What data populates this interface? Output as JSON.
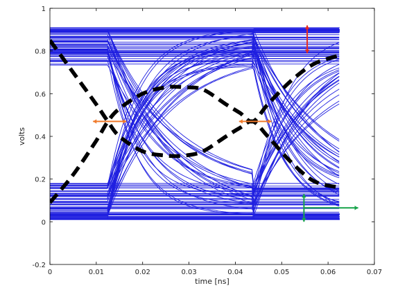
{
  "chart_data": {
    "type": "line",
    "title": "",
    "xlabel": "time [ns]",
    "ylabel": "volts",
    "xlim": [
      0,
      0.07
    ],
    "ylim": [
      -0.2,
      1
    ],
    "xticks": [
      0,
      0.01,
      0.02,
      0.03,
      0.04,
      0.05,
      0.06,
      0.07
    ],
    "xtick_labels": [
      "0",
      "0.01",
      "0.02",
      "0.03",
      "0.04",
      "0.05",
      "0.06",
      "0.07"
    ],
    "yticks": [
      -0.2,
      0,
      0.2,
      0.4,
      0.6,
      0.8,
      1
    ],
    "ytick_labels": [
      "-0.2",
      "0",
      "0.2",
      "0.4",
      "0.6",
      "0.8",
      "1"
    ],
    "grid": false,
    "eye_diagram": {
      "color": "#1f1fe0",
      "unit_interval": 0.0313,
      "crossing_times": [
        0.0125,
        0.0438
      ],
      "crossing_level": 0.47,
      "levels": {
        "low": 0.01,
        "mid_low": 0.18,
        "mid_high": 0.73,
        "high": 0.91
      },
      "end_time": 0.0625
    },
    "series": [
      {
        "style": "dashed",
        "color": "#000000",
        "x": [
          0,
          0.005,
          0.01,
          0.0125,
          0.015,
          0.02,
          0.025,
          0.029,
          0.033,
          0.038,
          0.041,
          0.0438,
          0.047,
          0.052,
          0.057,
          0.0625
        ],
        "y": [
          0.85,
          0.7,
          0.55,
          0.47,
          0.4,
          0.33,
          0.31,
          0.31,
          0.33,
          0.4,
          0.44,
          0.47,
          0.4,
          0.28,
          0.19,
          0.16
        ]
      },
      {
        "style": "dashed",
        "color": "#000000",
        "x": [
          0,
          0.005,
          0.01,
          0.0125,
          0.015,
          0.02,
          0.025,
          0.029,
          0.033,
          0.038,
          0.041,
          0.0438,
          0.047,
          0.052,
          0.057,
          0.0625
        ],
        "y": [
          0.09,
          0.22,
          0.38,
          0.47,
          0.53,
          0.6,
          0.63,
          0.63,
          0.62,
          0.55,
          0.51,
          0.47,
          0.55,
          0.66,
          0.74,
          0.78
        ]
      }
    ],
    "annotations": [
      {
        "type": "double-arrow",
        "color": "#e8291c",
        "x1": 0.0555,
        "y1": 0.92,
        "x2": 0.0555,
        "y2": 0.79
      },
      {
        "type": "double-arrow",
        "color": "#f07a2a",
        "x1": 0.0093,
        "y1": 0.47,
        "x2": 0.0165,
        "y2": 0.47
      },
      {
        "type": "double-arrow",
        "color": "#f07a2a",
        "x1": 0.0408,
        "y1": 0.47,
        "x2": 0.0478,
        "y2": 0.47
      },
      {
        "type": "double-arrow",
        "color": "#17a34a",
        "x1": 0.0548,
        "y1": 0.13,
        "x2": 0.0548,
        "y2": 0.0
      },
      {
        "type": "arrow",
        "color": "#17a34a",
        "x1": 0.0548,
        "y1": 0.065,
        "x2": 0.0665,
        "y2": 0.065
      }
    ]
  }
}
